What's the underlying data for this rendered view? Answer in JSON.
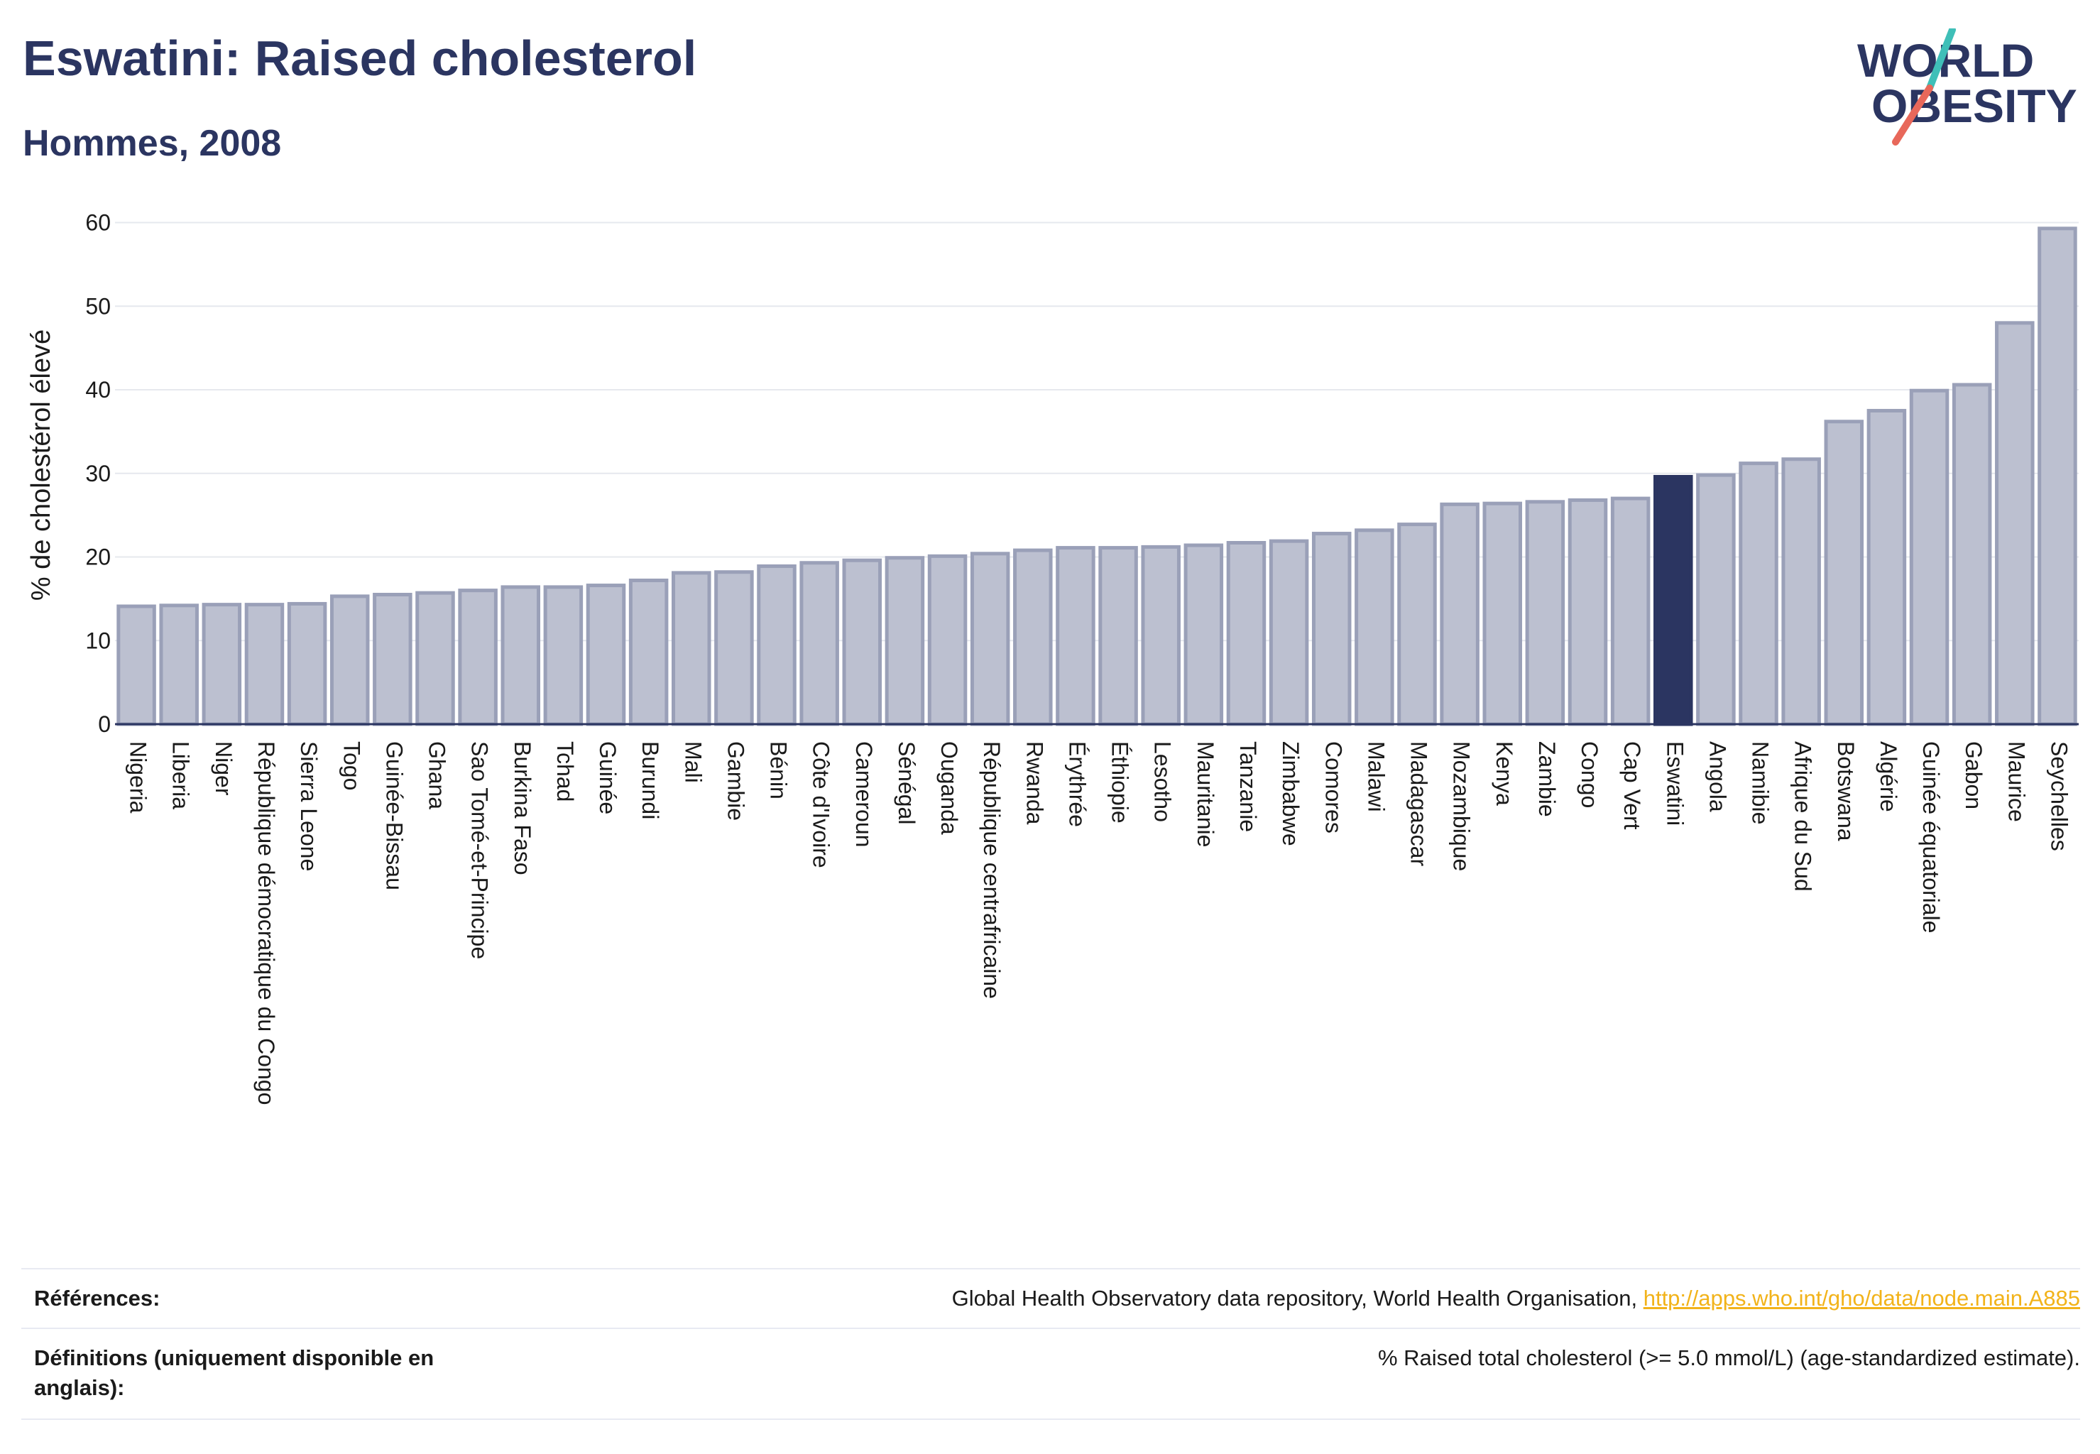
{
  "header": {
    "title": "Eswatini: Raised cholesterol",
    "subtitle": "Hommes, 2008"
  },
  "logo": {
    "line1": "WORLD",
    "line2": "OBESITY"
  },
  "colors": {
    "accent": "#2b3561",
    "bar": "#bcc0d0",
    "bar_stroke": "#9aa0b8",
    "highlight": "#2b3561",
    "link": "#f2b31a",
    "logo_teal": "#3fbfb8",
    "logo_coral": "#e8685a"
  },
  "chart_data": {
    "type": "bar",
    "ylabel": "% de cholestérol élevé",
    "ylim": [
      0,
      62
    ],
    "yticks": [
      0,
      10,
      20,
      30,
      40,
      50,
      60
    ],
    "grid": true,
    "highlight": "Eswatini",
    "categories": [
      "Nigeria",
      "Liberia",
      "Niger",
      "République démocratique du Congo",
      "Sierra Leone",
      "Togo",
      "Guinée-Bissau",
      "Ghana",
      "Sao Tomé-et-Principe",
      "Burkina Faso",
      "Tchad",
      "Guinée",
      "Burundi",
      "Mali",
      "Gambie",
      "Bénin",
      "Côte d'Ivoire",
      "Cameroun",
      "Sénégal",
      "Ouganda",
      "République centrafricaine",
      "Rwanda",
      "Érythrée",
      "Éthiopie",
      "Lesotho",
      "Mauritanie",
      "Tanzanie",
      "Zimbabwe",
      "Comores",
      "Malawi",
      "Madagascar",
      "Mozambique",
      "Kenya",
      "Zambie",
      "Congo",
      "Cap Vert",
      "Eswatini",
      "Angola",
      "Namibie",
      "Afrique du Sud",
      "Botswana",
      "Algérie",
      "Guinée équatoriale",
      "Gabon",
      "Maurice",
      "Seychelles"
    ],
    "values": [
      14.1,
      14.2,
      14.3,
      14.3,
      14.4,
      15.3,
      15.5,
      15.7,
      16.0,
      16.4,
      16.4,
      16.6,
      17.2,
      18.1,
      18.2,
      18.9,
      19.3,
      19.6,
      19.9,
      20.1,
      20.4,
      20.8,
      21.1,
      21.1,
      21.2,
      21.4,
      21.7,
      21.9,
      22.8,
      23.2,
      23.9,
      26.3,
      26.4,
      26.6,
      26.8,
      27.0,
      29.6,
      29.8,
      31.2,
      31.7,
      36.2,
      37.5,
      39.9,
      40.6,
      48.0,
      59.3
    ]
  },
  "references": {
    "ref_label": "Références:",
    "ref_text": "Global Health Observatory data repository, World Health Organisation, ",
    "ref_link": "http://apps.who.int/gho/data/node.main.A885",
    "def_label": "Définitions (uniquement disponible en anglais):",
    "def_text": "% Raised total cholesterol (>= 5.0 mmol/L) (age-standardized estimate)."
  }
}
